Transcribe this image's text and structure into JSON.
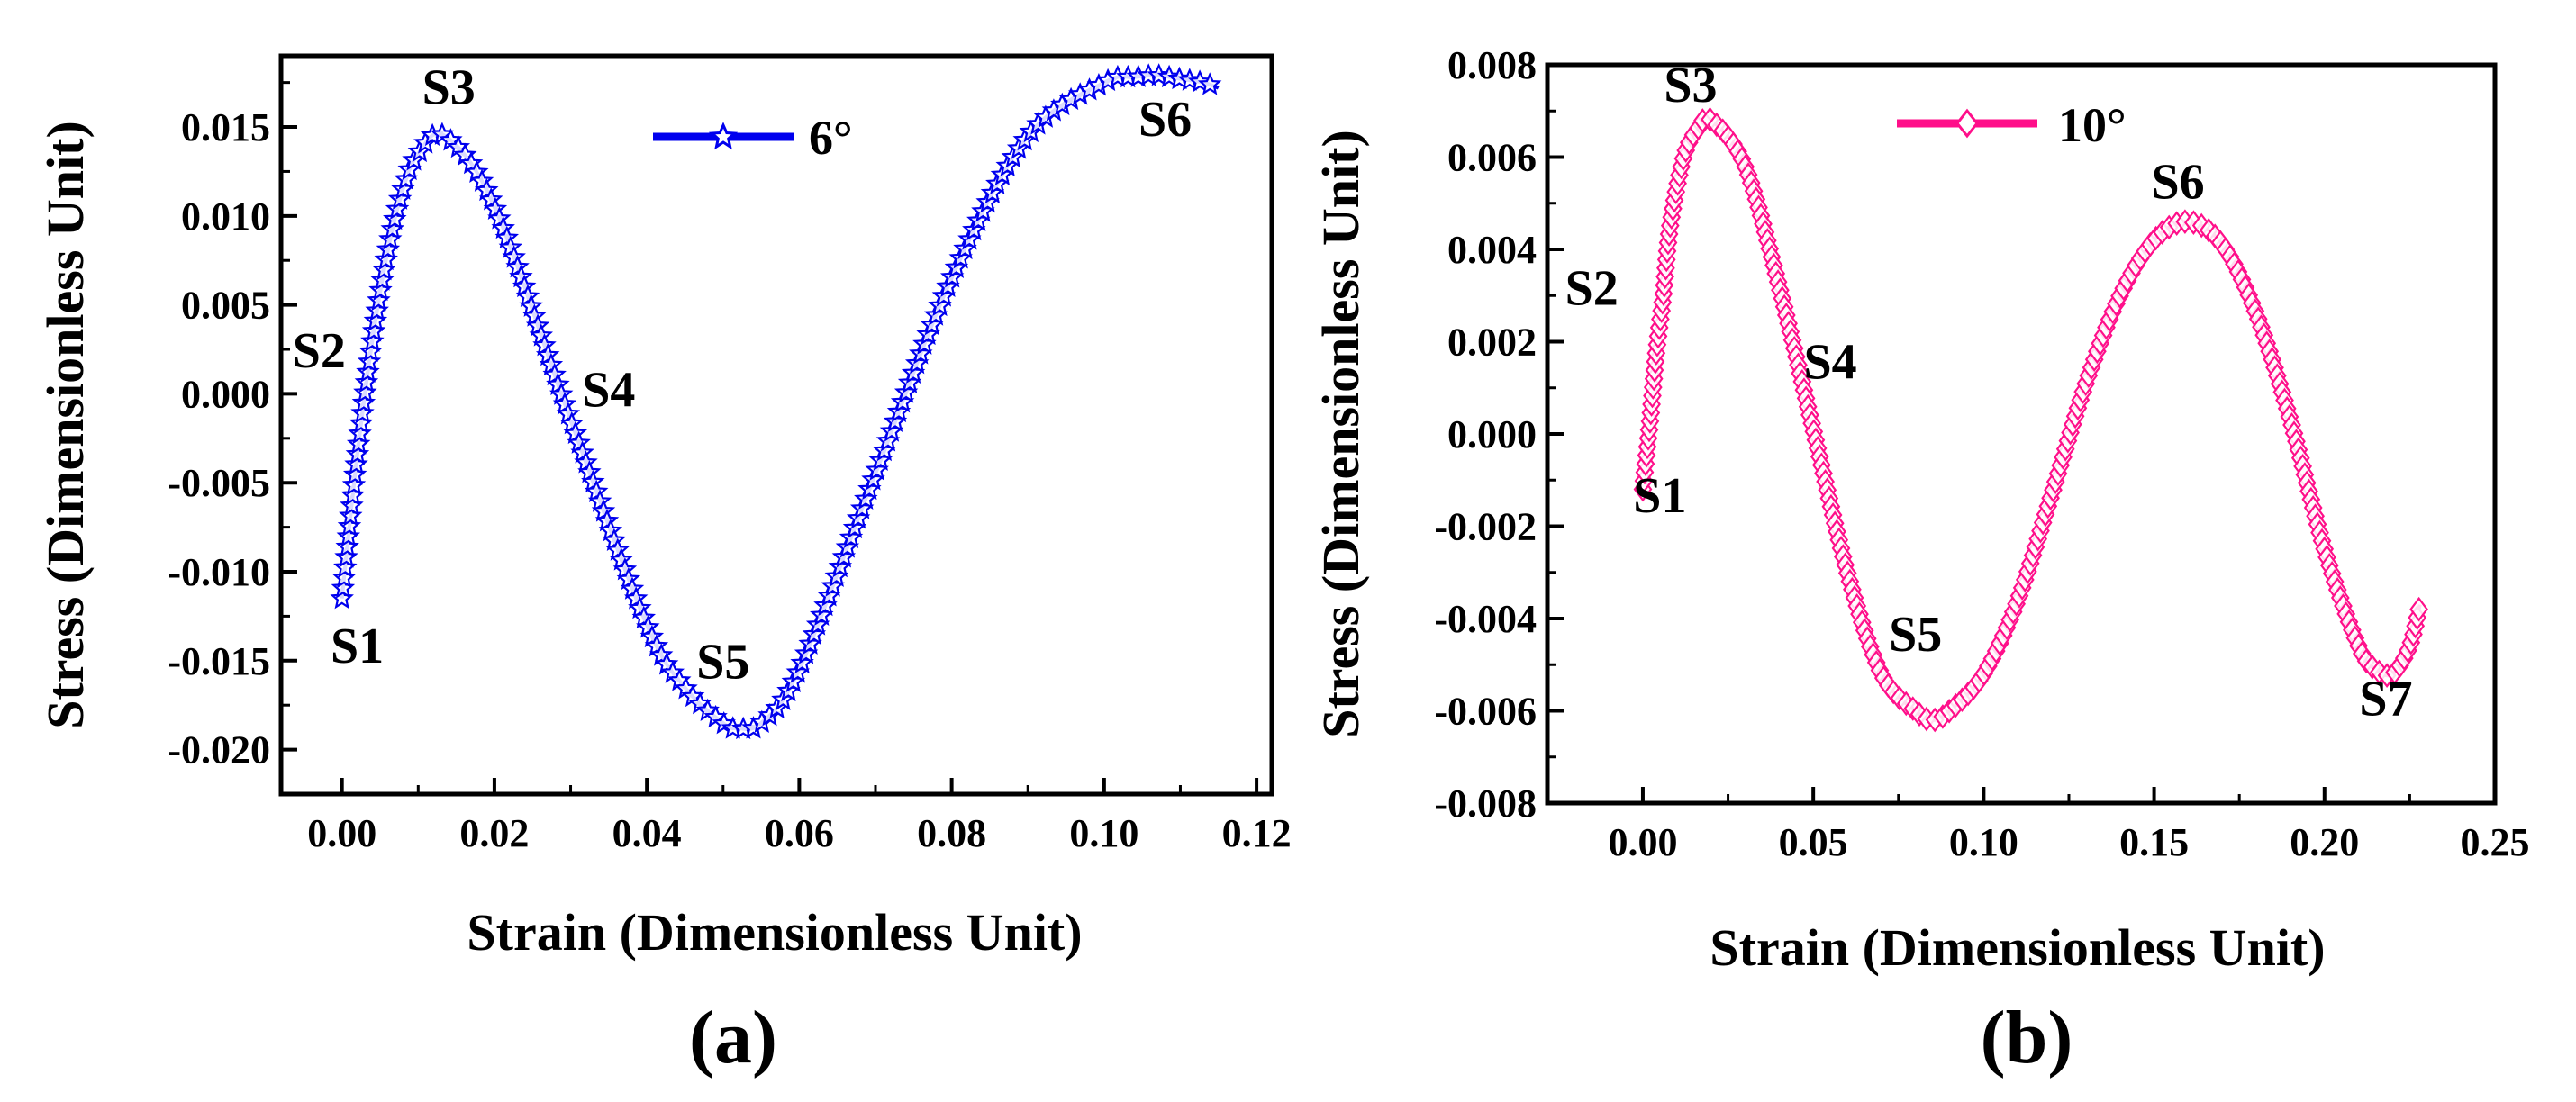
{
  "chart_data": [
    {
      "type": "line",
      "panel_label": "(a)",
      "xlabel": "Strain  (Dimensionless Unit)",
      "ylabel": "Stress (Dimensionless Unit)",
      "xlim": [
        -0.008,
        0.122
      ],
      "ylim": [
        -0.0225,
        0.019
      ],
      "xticks": [
        0.0,
        0.02,
        0.04,
        0.06,
        0.08,
        0.1,
        0.12
      ],
      "xtick_labels": [
        "0.00",
        "0.02",
        "0.04",
        "0.06",
        "0.08",
        "0.10",
        "0.12"
      ],
      "yticks": [
        -0.02,
        -0.015,
        -0.01,
        -0.005,
        0.0,
        0.005,
        0.01,
        0.015
      ],
      "ytick_labels": [
        "-0.020",
        "-0.015",
        "-0.010",
        "-0.005",
        "0.000",
        "0.005",
        "0.010",
        "0.015"
      ],
      "legend": "top-center",
      "series": [
        {
          "name": "6°",
          "color": "#0000ee",
          "marker": "star",
          "x": [
            0.0,
            0.002,
            0.004,
            0.006,
            0.008,
            0.01,
            0.0135,
            0.02,
            0.03,
            0.04,
            0.045,
            0.05,
            0.052,
            0.055,
            0.06,
            0.07,
            0.08,
            0.09,
            0.1,
            0.104,
            0.107,
            0.11,
            0.113,
            0.115
          ],
          "y": [
            -0.0115,
            -0.0035,
            0.003,
            0.008,
            0.0115,
            0.0135,
            0.0145,
            0.0105,
            -0.0015,
            -0.013,
            -0.0165,
            -0.0185,
            -0.0188,
            -0.0185,
            -0.0155,
            -0.0045,
            0.0065,
            0.0145,
            0.0175,
            0.0178,
            0.0179,
            0.0177,
            0.0175,
            0.0172
          ]
        }
      ],
      "annotations": [
        {
          "text": "S1",
          "x": 0.002,
          "y": -0.0151
        },
        {
          "text": "S2",
          "x": -0.003,
          "y": 0.0015
        },
        {
          "text": "S3",
          "x": 0.014,
          "y": 0.0163
        },
        {
          "text": "S4",
          "x": 0.035,
          "y": -0.0007
        },
        {
          "text": "S5",
          "x": 0.05,
          "y": -0.016
        },
        {
          "text": "S6",
          "x": 0.108,
          "y": 0.0145
        }
      ]
    },
    {
      "type": "line",
      "panel_label": "(b)",
      "xlabel": "Strain  (Dimensionless Unit)",
      "ylabel": "Stress (Dimensionless Unit)",
      "xlim": [
        -0.028,
        0.25
      ],
      "ylim": [
        -0.008,
        0.008
      ],
      "xticks": [
        0.0,
        0.05,
        0.1,
        0.15,
        0.2,
        0.25
      ],
      "xtick_labels": [
        "0.00",
        "0.05",
        "0.10",
        "0.15",
        "0.20",
        "0.25"
      ],
      "yticks": [
        -0.008,
        -0.006,
        -0.004,
        -0.002,
        0.0,
        0.002,
        0.004,
        0.006,
        0.008
      ],
      "ytick_labels": [
        "-0.008",
        "-0.006",
        "-0.004",
        "-0.002",
        "0.000",
        "0.002",
        "0.004",
        "0.006",
        "0.008"
      ],
      "legend": "top-center",
      "series": [
        {
          "name": "10°",
          "color": "#ff0f8a",
          "marker": "diamond",
          "x": [
            0.0,
            0.002,
            0.004,
            0.006,
            0.008,
            0.012,
            0.016,
            0.02,
            0.03,
            0.04,
            0.05,
            0.06,
            0.07,
            0.08,
            0.085,
            0.09,
            0.1,
            0.11,
            0.12,
            0.13,
            0.14,
            0.15,
            0.16,
            0.17,
            0.18,
            0.19,
            0.2,
            0.21,
            0.215,
            0.22,
            0.225,
            0.228
          ],
          "y": [
            -0.0012,
            0.0002,
            0.0018,
            0.003,
            0.0045,
            0.006,
            0.0066,
            0.0068,
            0.0058,
            0.0032,
            0.0001,
            -0.003,
            -0.0052,
            -0.006,
            -0.0062,
            -0.006,
            -0.0052,
            -0.0036,
            -0.0013,
            0.0011,
            0.003,
            0.0042,
            0.0046,
            0.0041,
            0.0026,
            0.0003,
            -0.0025,
            -0.0046,
            -0.0051,
            -0.0052,
            -0.0046,
            -0.0037
          ]
        }
      ],
      "annotations": [
        {
          "text": "S1",
          "x": 0.005,
          "y": -0.0017
        },
        {
          "text": "S2",
          "x": -0.015,
          "y": 0.0028
        },
        {
          "text": "S3",
          "x": 0.014,
          "y": 0.0072
        },
        {
          "text": "S4",
          "x": 0.055,
          "y": 0.0012
        },
        {
          "text": "S5",
          "x": 0.08,
          "y": -0.0047
        },
        {
          "text": "S6",
          "x": 0.157,
          "y": 0.0051
        },
        {
          "text": "S7",
          "x": 0.218,
          "y": -0.0061
        }
      ]
    }
  ]
}
